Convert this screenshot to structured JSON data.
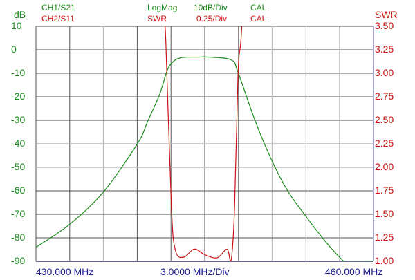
{
  "header": {
    "ch1": {
      "trace": "CH1/S21",
      "format": "LogMag",
      "scale": "10dB/Div",
      "cal": "CAL"
    },
    "ch2": {
      "trace": "CH2/S11",
      "format": "SWR",
      "scale": "0.25/Div",
      "cal": "CAL"
    }
  },
  "colors": {
    "ch1": "#1a8a1a",
    "ch2": "#cc1111",
    "freq": "#1a1a8c",
    "grid": "#555555",
    "grid_light": "#bbbbbb"
  },
  "chart_data": {
    "type": "line",
    "title": "",
    "xlabel": "3.0000 MHz/Div",
    "x_start_label": "430.000 MHz",
    "x_stop_label": "460.000 MHz",
    "xlim": [
      430,
      460
    ],
    "x_divisions": 10,
    "grid": true,
    "left_axis": {
      "label": "dB",
      "ylim": [
        -90,
        10
      ],
      "ticks": [
        "10",
        "0",
        "-10",
        "-20",
        "-30",
        "-40",
        "-50",
        "-60",
        "-70",
        "-80",
        "-90"
      ]
    },
    "right_axis": {
      "label": "SWR",
      "ylim": [
        1.0,
        3.5
      ],
      "ticks": [
        "3.50",
        "3.25",
        "3.00",
        "2.75",
        "2.50",
        "2.25",
        "2.00",
        "1.75",
        "1.50",
        "1.25",
        "1.00"
      ]
    },
    "series": [
      {
        "name": "CH1/S21",
        "axis": "left",
        "x": [
          430,
          432.96,
          435.99,
          439.01,
          439.94,
          440.99,
          441.6,
          442.04,
          442.84,
          444.5,
          445.31,
          447.35,
          447.96,
          449.44,
          450.99,
          452.41,
          454.0,
          455.6,
          457.04,
          457.65,
          460
        ],
        "y": [
          -84,
          -74.4,
          -60.5,
          -40,
          -30.3,
          -19,
          -9.6,
          -5.8,
          -3.4,
          -3.1,
          -3.1,
          -4.3,
          -9.6,
          -29.7,
          -47.4,
          -60.3,
          -70.9,
          -80.8,
          -88.5,
          -90,
          -90
        ]
      },
      {
        "name": "CH2/S11",
        "axis": "right",
        "x": [
          441.3,
          441.54,
          442.04,
          442.41,
          443.15,
          444.07,
          445.0,
          446.11,
          446.98,
          447.35,
          447.65,
          447.96,
          448.21,
          448.45
        ],
        "y": [
          3.8,
          3.34,
          1.57,
          1.11,
          1.044,
          1.13,
          1.07,
          1.037,
          1.13,
          1.015,
          1.57,
          2.99,
          3.34,
          3.8
        ]
      }
    ]
  }
}
